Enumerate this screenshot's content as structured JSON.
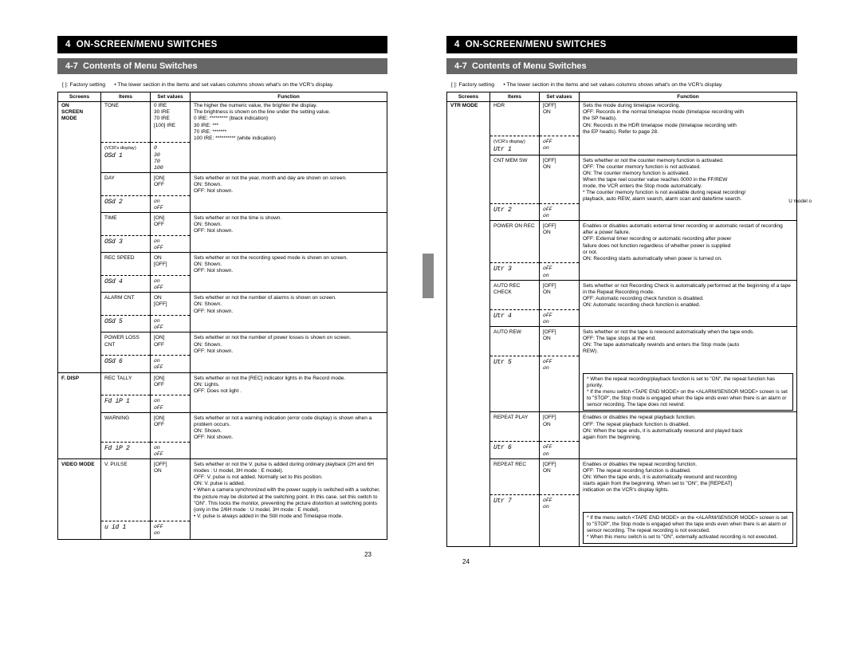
{
  "header": {
    "chapter": "4",
    "title": "ON-SCREEN/MENU SWITCHES",
    "section_num": "4-7",
    "section_title": "Contents of Menu Switches"
  },
  "intro": {
    "factory_label": "[ ]: Factory setting",
    "note": "• The lower section in the items and set values columns shows what's on the VCR's display."
  },
  "columns": {
    "screens": "Screens",
    "items": "Items",
    "values": "Set values",
    "function": "Function"
  },
  "page_left": {
    "num": "23",
    "groups": [
      {
        "screen": "ON\nSCREEN\nMODE",
        "rows": [
          {
            "item": "TONE",
            "item2_label": "(VCR's display)",
            "item2": "OSd   1",
            "values": "0 IRE\n30 IRE\n70 IRE\n[100] IRE",
            "values2": "0\n30\n70\n100",
            "func": "The higher the numeric value, the brighter the display.\nThe brightness is shown on the line under the setting value.\n     0 IRE: ********* (black indication)\n   30 IRE: ***\n   70 IRE: *******\n100 IRE: ********** (white indication)"
          },
          {
            "item": "DAY",
            "item2": "OSd   2",
            "values": "[ON]\nOFF",
            "values2": "on\noFF",
            "func": "Sets whether or not the year, month and day are shown on screen.\n  ON: Shown.\nOFF: Not shown."
          },
          {
            "item": "TIME",
            "item2": "OSd   3",
            "values": "[ON]\nOFF",
            "values2": "on\noFF",
            "func": "Sets whether or not the time is shown.\n  ON: Shown.\nOFF: Not shown."
          },
          {
            "item": "REC SPEED",
            "item2": "OSd   4",
            "values": "ON\n[OFF]",
            "values2": "on\noFF",
            "func": "Sets whether or not the recording speed mode is shown on screen.\n  ON: Shown.\nOFF: Not shown."
          },
          {
            "item": "ALARM CNT",
            "item2": "OSd   5",
            "values": "ON\n[OFF]",
            "values2": "on\noFF",
            "func": "Sets whether or not the number of alarms is shown on screen.\n  ON: Shown.\nOFF: Not shown."
          },
          {
            "item": "POWER LOSS CNT",
            "item2": "OSd   6",
            "values": "[ON]\nOFF",
            "values2": "on\noFF",
            "func": "Sets whether or not the number of power losses is shown on screen.\n  ON: Shown.\nOFF: Not shown."
          }
        ]
      },
      {
        "screen": "F. DISP",
        "rows": [
          {
            "item": "REC TALLY",
            "item2": "Fd iP   1",
            "values": "[ON]\nOFF",
            "values2": "on\noFF",
            "func": "Sets whether or not the [REC] indicator lights in the Record mode.\n  ON: Lights.\nOFF: Does not light ."
          },
          {
            "item": "WARNING",
            "item2": "Fd iP   2",
            "values": "[ON]\nOFF",
            "values2": "on\noFF",
            "func": "Sets whether or not a warning indication (error code display) is shown when a problem occurs.\n  ON: Shown.\nOFF: Not shown."
          }
        ]
      },
      {
        "screen": "VIDEO MODE",
        "rows": [
          {
            "item": "V. PULSE",
            "item2": "u id   1",
            "values": "[OFF]\nON",
            "values2": "oFF\non",
            "func": "Sets whether or not the V. pulse is added during ordinary playback (2H and 6H modes : U model, 3H mode : E model).\nOFF: V. pulse is not added. Normally set to this position.\n  ON: V. pulse is added.\n• When a camera synchronized with the power supply is switched with a switcher, the picture may be distorted at the switching point. In this case, set this switch to \"ON\". This locks the monitor, preventing the picture distortion at switching points (only in the 2/6H mode : U model, 3H mode : E model).\n• V. pulse is always added in the Still mode and Timelapse mode."
          }
        ]
      }
    ]
  },
  "page_right": {
    "num": "24",
    "side_note": "U model o",
    "groups": [
      {
        "screen": "VTR MODE",
        "rows": [
          {
            "item": "HDR",
            "item2_label": "(VCR's display)",
            "item2": "Utr   1",
            "values": "[OFF]\nON",
            "values2": "oFF\non",
            "func": "Sets the mode during timelapse recording.\nOFF: Records in the normal timelapse mode (timelapse recording with\n         the SP heads).\n  ON: Records in the HDR timelapse mode (timelapse recording with\n         the EP heads). Refer to page 28."
          },
          {
            "item": "CNT MEM SW",
            "item2": "Utr   2",
            "values": "[OFF]\nON",
            "values2": "oFF\non",
            "func": "Sets whether or not the counter memory function is activated.\nOFF: The counter memory function is not activated.\n  ON: The counter memory function is activated.\n         When the tape reel counter value reaches 0000 in the FF/REW\n         mode, the VCR enters the Stop mode automatically.\n       * The counter memory function is not available during repeat recording/\n         playback, auto REW, alarm search, alarm scan and date/time search."
          },
          {
            "item": "POWER ON REC",
            "item2": "Utr   3",
            "values": "[OFF]\nON",
            "values2": "oFF\non",
            "func": "Enables or disables automatic external timer recording or automatic restart of recording after a power failure.\nOFF: External timer recording or automatic recording after power\n         failure does not function regardless of whether power is supplied\n         or not.\n  ON: Recording starts automatically when power is turned on."
          },
          {
            "item": "AUTO REC CHECK",
            "item2": "Utr   4",
            "values": "[OFF]\nON",
            "values2": "oFF\non",
            "func": "Sets whether or not Recording Check is automatically performed at the beginning of a tape in the Repeat Recording mode.\nOFF: Automatic recording check function is disabled.\n  ON: Automatic recording check function is enabled."
          },
          {
            "item": "AUTO REW",
            "item2": "Utr   5",
            "values": "[OFF]\nON",
            "values2": "oFF\non",
            "func": "Sets whether or not the tape is rewound automatically when the tape ends.\nOFF: The tape stops at the end.\n  ON: The tape automatically rewinds and enters the Stop mode (auto\n         REW).",
            "notebox": "* When the repeat recording/playback function is set to \"ON\", the repeat function has priority.\n* If the menu switch <TAPE END MODE> on the <ALARM/SENSOR MODE> screen is set to \"STOP\", the Stop mode is engaged when the tape ends even when there is an alarm or sensor recording. The tape does not rewind."
          },
          {
            "item": "REPEAT PLAY",
            "item2": "Utr   6",
            "values": "[OFF]\nON",
            "values2": "oFF\non",
            "func": "Enables or disables the repeat playback function.\nOFF: The repeat playback function is disabled.\n  ON: When the tape ends, it is automatically rewound and played back\n         again from the beginning."
          },
          {
            "item": "REPEAT REC",
            "item2": "Utr   7",
            "values": "[OFF]\nON",
            "values2": "oFF\non",
            "func": "Enables or disables the repeat recording function.\nOFF: The repeat recording function is disabled.\n  ON: When the tape ends, it is automatically rewound and recording\n         starts again from the beginning. When set to \"ON\", the [REPEAT]\n         indication on the VCR's display lights.",
            "notebox": "* If the menu switch <TAPE END MODE> on the <ALARM/SENSOR MODE> screen is set to \"STOP\", the Stop mode is engaged when the tape ends even when there is an alarm or sensor recording. The repeat recording is not executed.\n* When this menu switch is set to \"ON\", externally activated recording is not executed."
          }
        ]
      }
    ]
  }
}
